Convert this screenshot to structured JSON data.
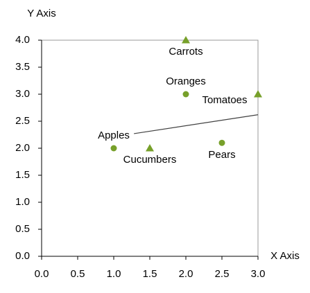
{
  "chart_data": {
    "type": "scatter",
    "x_label": "X Axis",
    "y_label": "Y Axis",
    "xlim": [
      0,
      3
    ],
    "ylim": [
      0,
      4
    ],
    "xticks": [
      {
        "value": 0,
        "label": "0.0"
      },
      {
        "value": 0.5,
        "label": "0.5"
      },
      {
        "value": 1,
        "label": "1.0"
      },
      {
        "value": 1.5,
        "label": "1.5"
      },
      {
        "value": 2,
        "label": "2.0"
      },
      {
        "value": 2.5,
        "label": "2.5"
      },
      {
        "value": 3,
        "label": "3.0"
      }
    ],
    "yticks": [
      {
        "value": 0,
        "label": "0.0"
      },
      {
        "value": 0.5,
        "label": "0.5"
      },
      {
        "value": 1,
        "label": "1.0"
      },
      {
        "value": 1.5,
        "label": "1.5"
      },
      {
        "value": 2,
        "label": "2.0"
      },
      {
        "value": 2.5,
        "label": "2.5"
      },
      {
        "value": 3,
        "label": "3.0"
      },
      {
        "value": 3.5,
        "label": "3.5"
      },
      {
        "value": 4,
        "label": "4.0"
      }
    ],
    "grid": false,
    "series": [
      {
        "marker": "circle",
        "color": "#77a02a",
        "x": [
          1,
          2,
          2.5
        ],
        "values": [
          2,
          3,
          2.1
        ],
        "labels": [
          "Apples",
          "Oranges",
          "Pears"
        ]
      },
      {
        "marker": "triangle",
        "color": "#77a02a",
        "x": [
          1.5,
          2,
          3
        ],
        "values": [
          2,
          4,
          3
        ],
        "labels": [
          "Cucumbers",
          "Carrots",
          "Tomatoes"
        ]
      },
      {
        "marker": "line",
        "color": "#404040",
        "x": [
          1.28,
          3
        ],
        "values": [
          2.27,
          2.62
        ]
      }
    ]
  }
}
